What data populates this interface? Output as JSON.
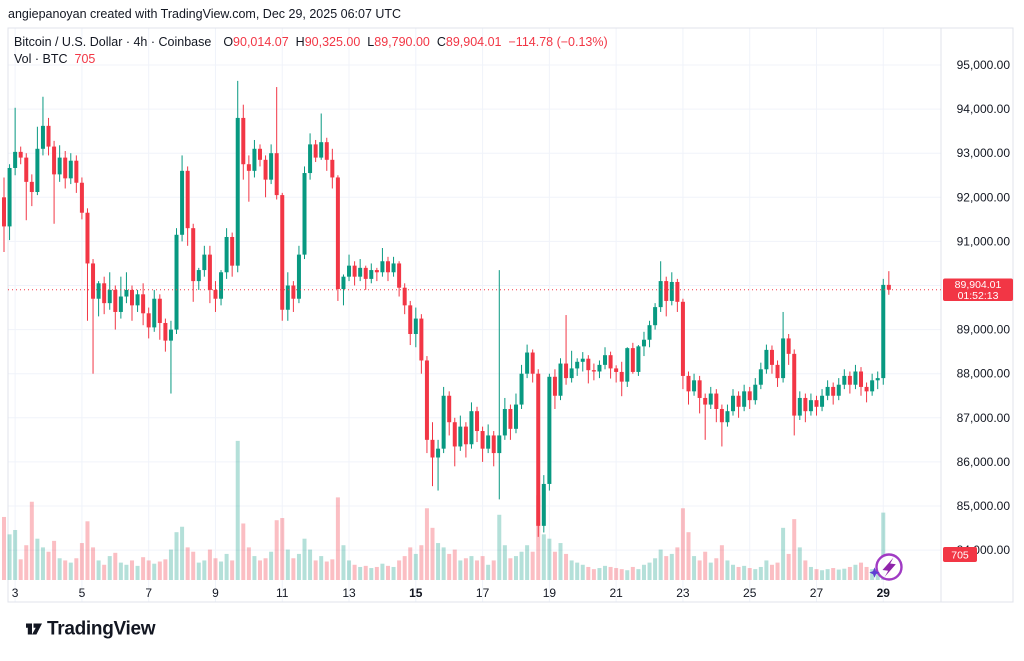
{
  "attribution": "angiepanoyan created with TradingView.com, Dec 29, 2025 06:07 UTC",
  "legend": {
    "symbol_line": {
      "title": "Bitcoin / U.S. Dollar · 4h · Coinbase",
      "o_label": "O",
      "o_value": "90,014.07",
      "h_label": "H",
      "h_value": "90,325.00",
      "l_label": "L",
      "l_value": "89,790.00",
      "c_label": "C",
      "c_value": "89,904.01",
      "change": "−114.78 (−0.13%)"
    },
    "volume_line": {
      "label": "Vol · BTC",
      "value": "705"
    }
  },
  "price_label": {
    "price": "89,904.01",
    "countdown": "01:52:13"
  },
  "volume_axis_label": "705",
  "logo_text": "TradingView",
  "colors": {
    "up": "#089981",
    "down": "#f23645",
    "vol_up": "rgba(8,153,129,0.30)",
    "vol_down": "rgba(242,54,69,0.32)",
    "grid": "#f0f3fa",
    "border": "#e0e3eb",
    "axis_text": "#131722",
    "label_bg": "#f23645",
    "label_text": "#ffffff",
    "price_line": "#f23645",
    "logo": "#131722",
    "ai_icon_ring": "#a03bc4",
    "ai_icon_bolt": "#8e24aa",
    "ai_icon_star": "#5d3fd3"
  },
  "price_axis": {
    "labels": [
      {
        "text": "95,000.00",
        "price": 95000
      },
      {
        "text": "94,000.00",
        "price": 94000
      },
      {
        "text": "93,000.00",
        "price": 93000
      },
      {
        "text": "92,000.00",
        "price": 92000
      },
      {
        "text": "91,000.00",
        "price": 91000
      },
      {
        "text": "90,000.00",
        "price": 90000
      },
      {
        "text": "89,000.00",
        "price": 89000
      },
      {
        "text": "88,000.00",
        "price": 88000
      },
      {
        "text": "87,000.00",
        "price": 87000
      },
      {
        "text": "86,000.00",
        "price": 86000
      },
      {
        "text": "85,000.00",
        "price": 85000
      },
      {
        "text": "84,000.00",
        "price": 84000
      }
    ]
  },
  "time_axis": {
    "ticks": [
      {
        "label": "3",
        "i": 2,
        "bold": false
      },
      {
        "label": "5",
        "i": 14,
        "bold": false
      },
      {
        "label": "7",
        "i": 26,
        "bold": false
      },
      {
        "label": "9",
        "i": 38,
        "bold": false
      },
      {
        "label": "11",
        "i": 50,
        "bold": false
      },
      {
        "label": "13",
        "i": 62,
        "bold": false
      },
      {
        "label": "15",
        "i": 74,
        "bold": true
      },
      {
        "label": "17",
        "i": 86,
        "bold": false
      },
      {
        "label": "19",
        "i": 98,
        "bold": false
      },
      {
        "label": "21",
        "i": 110,
        "bold": false
      },
      {
        "label": "23",
        "i": 122,
        "bold": false
      },
      {
        "label": "25",
        "i": 134,
        "bold": false
      },
      {
        "label": "27",
        "i": 146,
        "bold": false
      },
      {
        "label": "29",
        "i": 158,
        "bold": true
      }
    ]
  },
  "chart_data": {
    "type": "candlestick+volume",
    "symbol": "Bitcoin / U.S. Dollar",
    "interval": "4h",
    "exchange": "Coinbase",
    "date_range": "Dec 2 - Dec 29, 2025",
    "y_axis_range": [
      84000,
      95000
    ],
    "current_candle": {
      "open": 90014.07,
      "high": 90325.0,
      "low": 89790.0,
      "close": 89904.01,
      "change": -114.78,
      "change_pct": -0.13,
      "volume_btc": 705,
      "countdown": "01:52:13"
    },
    "current_price": 89904.01,
    "candles_format": [
      "open",
      "high",
      "low",
      "close",
      "volume_btc"
    ],
    "candles": [
      [
        92000,
        92450,
        90760,
        91340,
        2900
      ],
      [
        91340,
        92750,
        91030,
        92665,
        2100
      ],
      [
        92665,
        94030,
        92500,
        93030,
        2300
      ],
      [
        93030,
        93150,
        92750,
        92900,
        950
      ],
      [
        92900,
        93000,
        91480,
        92350,
        1600
      ],
      [
        92350,
        92520,
        91800,
        92120,
        3600
      ],
      [
        92120,
        93600,
        92050,
        93100,
        1900
      ],
      [
        93100,
        94280,
        92950,
        93620,
        1500
      ],
      [
        93620,
        93800,
        92950,
        93150,
        1300
      ],
      [
        93150,
        93280,
        91400,
        92520,
        1800
      ],
      [
        92520,
        93180,
        92350,
        92900,
        1000
      ],
      [
        92900,
        93050,
        92200,
        92430,
        900
      ],
      [
        92430,
        93000,
        92300,
        92830,
        800
      ],
      [
        92830,
        92950,
        92100,
        92330,
        1000
      ],
      [
        92330,
        92450,
        91500,
        91650,
        1700
      ],
      [
        91650,
        91750,
        89200,
        90500,
        2700
      ],
      [
        90500,
        90600,
        88000,
        89700,
        1500
      ],
      [
        89700,
        90100,
        89300,
        90050,
        900
      ],
      [
        90050,
        90200,
        89350,
        89600,
        700
      ],
      [
        89600,
        90300,
        89450,
        89900,
        1100
      ],
      [
        89900,
        90000,
        89000,
        89400,
        1250
      ],
      [
        89400,
        90200,
        89250,
        89750,
        800
      ],
      [
        89750,
        90300,
        89600,
        89900,
        700
      ],
      [
        89900,
        90000,
        89200,
        89550,
        900
      ],
      [
        89550,
        89900,
        89400,
        89800,
        650
      ],
      [
        89800,
        90050,
        89100,
        89370,
        1050
      ],
      [
        89370,
        89500,
        88800,
        89050,
        900
      ],
      [
        89050,
        89900,
        88950,
        89700,
        750
      ],
      [
        89700,
        89800,
        88770,
        89150,
        850
      ],
      [
        89150,
        89250,
        88500,
        88750,
        950
      ],
      [
        88750,
        89200,
        87550,
        89000,
        1400
      ],
      [
        89000,
        91300,
        88900,
        91150,
        2200
      ],
      [
        91150,
        92950,
        91000,
        92600,
        2450
      ],
      [
        92600,
        92700,
        90900,
        91300,
        1500
      ],
      [
        91300,
        91400,
        89630,
        90100,
        1300
      ],
      [
        90100,
        90400,
        89900,
        90350,
        800
      ],
      [
        90350,
        90900,
        90200,
        90700,
        900
      ],
      [
        90700,
        90900,
        89600,
        89900,
        1400
      ],
      [
        89900,
        90100,
        89400,
        89700,
        1000
      ],
      [
        89700,
        90350,
        89550,
        90300,
        850
      ],
      [
        90300,
        91300,
        90150,
        91100,
        1200
      ],
      [
        91100,
        91200,
        90200,
        90450,
        900
      ],
      [
        90450,
        94640,
        90300,
        93800,
        6400
      ],
      [
        93800,
        94100,
        92400,
        92750,
        2600
      ],
      [
        92750,
        92950,
        91900,
        92600,
        1500
      ],
      [
        92600,
        93300,
        92450,
        93100,
        1100
      ],
      [
        93100,
        93200,
        92700,
        92850,
        900
      ],
      [
        92850,
        92950,
        92000,
        92400,
        1000
      ],
      [
        92400,
        93200,
        92300,
        93000,
        1300
      ],
      [
        93000,
        94500,
        91950,
        92050,
        2750
      ],
      [
        92050,
        92100,
        89200,
        89450,
        2850
      ],
      [
        89450,
        90300,
        89200,
        90000,
        1400
      ],
      [
        90000,
        90100,
        89400,
        89700,
        1000
      ],
      [
        89700,
        90900,
        89600,
        90700,
        1200
      ],
      [
        90700,
        92700,
        90600,
        92550,
        1900
      ],
      [
        92550,
        93450,
        92400,
        93200,
        1400
      ],
      [
        93200,
        93300,
        92800,
        92900,
        900
      ],
      [
        92900,
        93900,
        92850,
        93250,
        1100
      ],
      [
        93250,
        93350,
        92600,
        92850,
        850
      ],
      [
        92850,
        93100,
        92200,
        92450,
        950
      ],
      [
        92450,
        92500,
        89650,
        89920,
        3800
      ],
      [
        89920,
        90250,
        89550,
        90200,
        1600
      ],
      [
        90200,
        90700,
        90100,
        90450,
        900
      ],
      [
        90450,
        90550,
        90000,
        90200,
        700
      ],
      [
        90200,
        90600,
        90100,
        90400,
        600
      ],
      [
        90400,
        90450,
        89900,
        90150,
        650
      ],
      [
        90150,
        90500,
        90050,
        90350,
        550
      ],
      [
        90350,
        90400,
        90100,
        90300,
        600
      ],
      [
        90300,
        90850,
        90200,
        90550,
        750
      ],
      [
        90550,
        90650,
        90100,
        90300,
        650
      ],
      [
        90300,
        90650,
        90200,
        90500,
        600
      ],
      [
        90500,
        90550,
        89750,
        89950,
        900
      ],
      [
        89950,
        90050,
        89350,
        89550,
        1100
      ],
      [
        89550,
        89650,
        88650,
        88900,
        1500
      ],
      [
        88900,
        89500,
        88600,
        89250,
        1200
      ],
      [
        89250,
        89350,
        88000,
        88300,
        1600
      ],
      [
        88300,
        88400,
        86200,
        86500,
        3300
      ],
      [
        86500,
        86900,
        85450,
        86100,
        2400
      ],
      [
        86100,
        86500,
        85350,
        86300,
        1700
      ],
      [
        86300,
        87700,
        86200,
        87500,
        1500
      ],
      [
        87500,
        87600,
        86600,
        86900,
        1200
      ],
      [
        86900,
        87000,
        85900,
        86350,
        1400
      ],
      [
        86350,
        87050,
        86250,
        86800,
        900
      ],
      [
        86800,
        86900,
        86100,
        86400,
        1000
      ],
      [
        86400,
        87350,
        86300,
        87150,
        1100
      ],
      [
        87150,
        87250,
        86450,
        86700,
        900
      ],
      [
        86700,
        86800,
        86000,
        86300,
        1100
      ],
      [
        86300,
        86850,
        86200,
        86600,
        700
      ],
      [
        86600,
        86700,
        85900,
        86200,
        900
      ],
      [
        86200,
        90350,
        85150,
        86600,
        3000
      ],
      [
        86600,
        87450,
        86500,
        87200,
        1600
      ],
      [
        87200,
        87300,
        86500,
        86750,
        1000
      ],
      [
        86750,
        87550,
        86650,
        87300,
        1100
      ],
      [
        87300,
        88200,
        87200,
        88000,
        1300
      ],
      [
        88000,
        88660,
        87900,
        88480,
        1600
      ],
      [
        88480,
        88550,
        87800,
        88000,
        1300
      ],
      [
        88000,
        88100,
        84300,
        84550,
        3900
      ],
      [
        84550,
        85700,
        84400,
        85500,
        2100
      ],
      [
        85500,
        88000,
        85350,
        87930,
        1900
      ],
      [
        87930,
        88100,
        87200,
        87500,
        1300
      ],
      [
        87500,
        88350,
        87400,
        88230,
        1700
      ],
      [
        88230,
        89330,
        87750,
        87900,
        1200
      ],
      [
        87900,
        88520,
        87800,
        88120,
        900
      ],
      [
        88120,
        88350,
        87950,
        88270,
        800
      ],
      [
        88270,
        88490,
        88050,
        88340,
        700
      ],
      [
        88340,
        88420,
        87780,
        88080,
        600
      ],
      [
        88080,
        88230,
        87850,
        88050,
        500
      ],
      [
        88050,
        88300,
        87900,
        88200,
        550
      ],
      [
        88200,
        88600,
        88100,
        88420,
        650
      ],
      [
        88420,
        88500,
        87890,
        88120,
        600
      ],
      [
        88120,
        88190,
        87800,
        88040,
        550
      ],
      [
        88040,
        88270,
        87490,
        87820,
        500
      ],
      [
        87820,
        88600,
        87700,
        88580,
        450
      ],
      [
        88580,
        88700,
        88000,
        88040,
        600
      ],
      [
        88040,
        88650,
        87950,
        88620,
        500
      ],
      [
        88620,
        88950,
        88400,
        88770,
        700
      ],
      [
        88770,
        89200,
        88600,
        89100,
        800
      ],
      [
        89100,
        89600,
        89000,
        89510,
        1000
      ],
      [
        89510,
        90550,
        89400,
        90100,
        1400
      ],
      [
        90100,
        90200,
        89300,
        89650,
        1100
      ],
      [
        89650,
        90300,
        89550,
        90080,
        1200
      ],
      [
        90080,
        90150,
        89400,
        89630,
        1500
      ],
      [
        89630,
        89700,
        87650,
        87950,
        3300
      ],
      [
        87950,
        88050,
        87300,
        87600,
        2200
      ],
      [
        87600,
        88000,
        87500,
        87850,
        1100
      ],
      [
        87850,
        87950,
        87100,
        87450,
        900
      ],
      [
        87450,
        87550,
        86500,
        87300,
        1300
      ],
      [
        87300,
        87700,
        87200,
        87550,
        800
      ],
      [
        87550,
        87650,
        86900,
        87200,
        1000
      ],
      [
        87200,
        87300,
        86350,
        86900,
        1600
      ],
      [
        86900,
        87300,
        86800,
        87150,
        900
      ],
      [
        87150,
        87650,
        87050,
        87500,
        700
      ],
      [
        87500,
        87600,
        87000,
        87250,
        600
      ],
      [
        87250,
        87750,
        87150,
        87600,
        650
      ],
      [
        87600,
        87700,
        87200,
        87400,
        550
      ],
      [
        87400,
        87900,
        87300,
        87750,
        500
      ],
      [
        87750,
        88250,
        87650,
        88100,
        600
      ],
      [
        88100,
        88660,
        88000,
        88540,
        900
      ],
      [
        88540,
        88640,
        88000,
        88200,
        700
      ],
      [
        88200,
        88300,
        87700,
        87900,
        800
      ],
      [
        87900,
        89400,
        87800,
        88800,
        2400
      ],
      [
        88800,
        88900,
        88200,
        88450,
        1200
      ],
      [
        88450,
        88550,
        86600,
        87050,
        2800
      ],
      [
        87050,
        87600,
        86950,
        87450,
        1500
      ],
      [
        87450,
        87550,
        86900,
        87150,
        900
      ],
      [
        87150,
        87550,
        87050,
        87400,
        600
      ],
      [
        87400,
        87500,
        87050,
        87250,
        500
      ],
      [
        87250,
        87650,
        87150,
        87500,
        450
      ],
      [
        87500,
        87850,
        87400,
        87700,
        500
      ],
      [
        87700,
        87800,
        87300,
        87500,
        550
      ],
      [
        87500,
        87900,
        87400,
        87750,
        480
      ],
      [
        87750,
        88100,
        87650,
        87950,
        520
      ],
      [
        87950,
        88050,
        87550,
        87750,
        600
      ],
      [
        87750,
        88200,
        87650,
        88050,
        700
      ],
      [
        88050,
        88150,
        87500,
        87700,
        800
      ],
      [
        87700,
        87800,
        87350,
        87600,
        600
      ],
      [
        87600,
        88000,
        87500,
        87850,
        500
      ],
      [
        87850,
        88050,
        87650,
        87900,
        550
      ],
      [
        87900,
        90150,
        87750,
        90014,
        3100
      ],
      [
        90014.07,
        90325,
        89790,
        89904.01,
        705
      ]
    ]
  }
}
